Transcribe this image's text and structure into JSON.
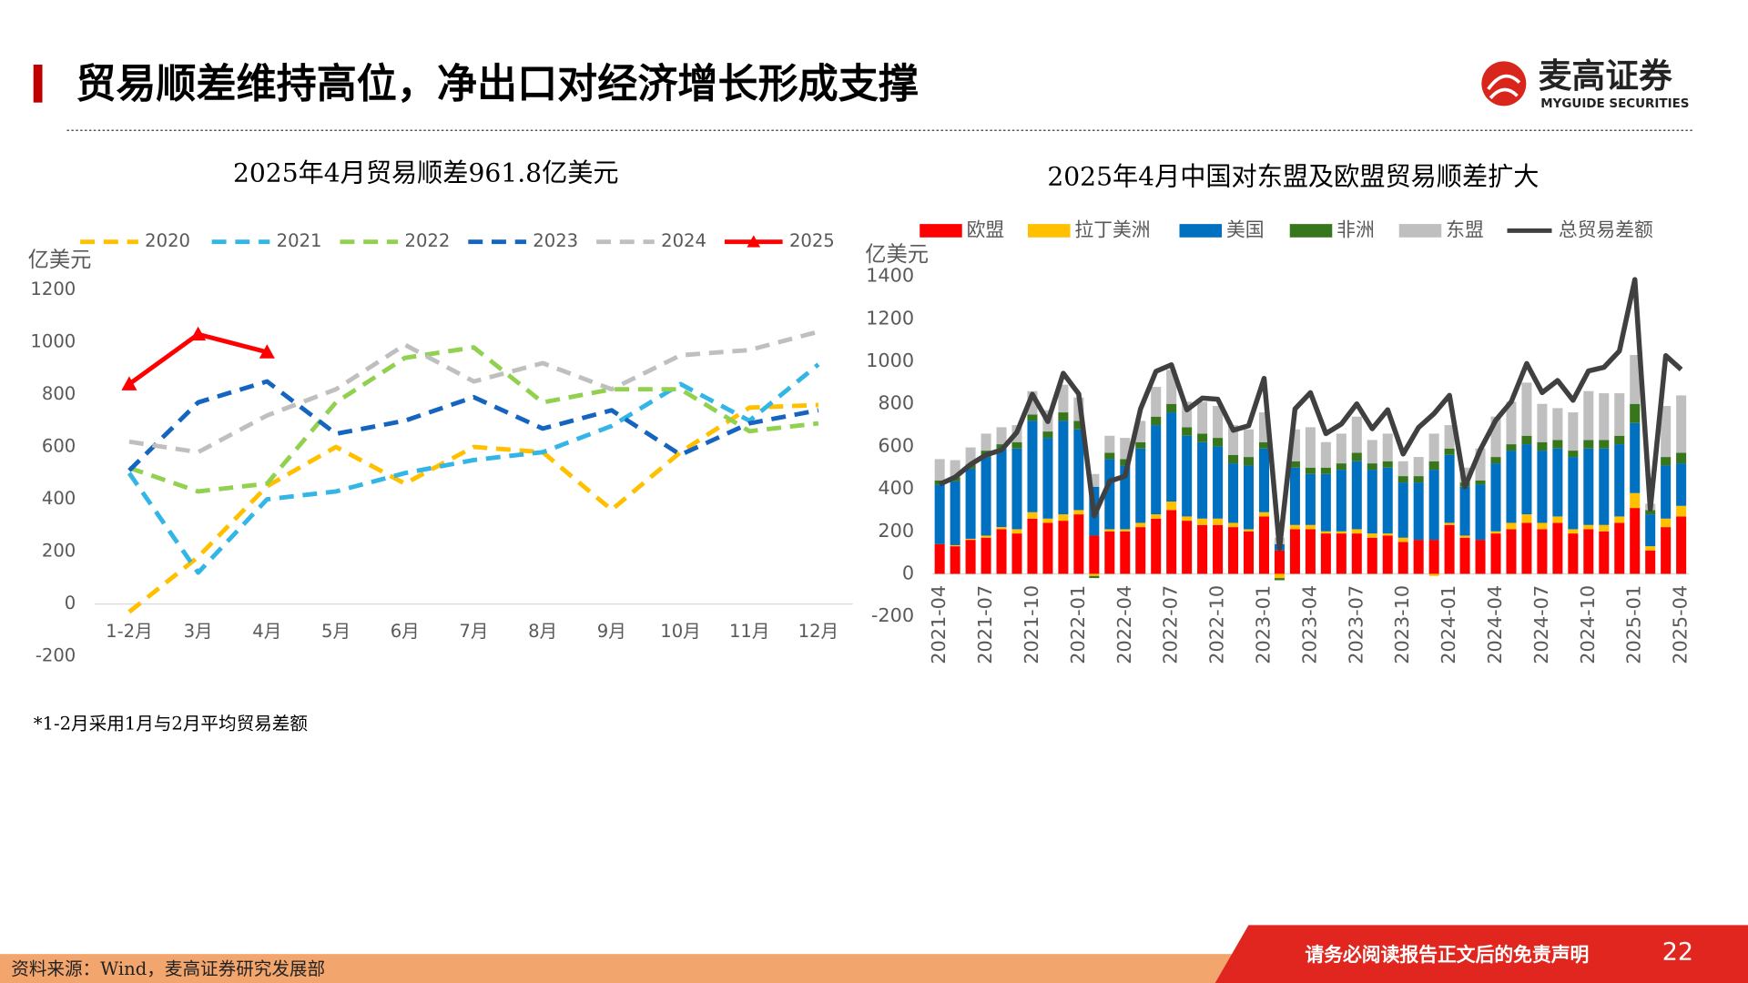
{
  "header": {
    "title": "贸易顺差维持高位，净出口对经济增长形成支撑",
    "logo": "麦高证券",
    "logo_sub": "MYGUIDE SECURITIES"
  },
  "chart_data": [
    {
      "type": "line",
      "title": "2025年4月贸易顺差961.8亿美元",
      "y_label": "亿美元",
      "categories": [
        "1-2月",
        "3月",
        "4月",
        "5月",
        "6月",
        "7月",
        "8月",
        "9月",
        "10月",
        "11月",
        "12月"
      ],
      "ylim": [
        -200,
        1200
      ],
      "yticks": [
        -200,
        0,
        200,
        400,
        600,
        800,
        1000,
        1200
      ],
      "series": [
        {
          "name": "2020",
          "color": "#FFC000",
          "line_style": "dashed",
          "values": [
            -30,
            180,
            450,
            600,
            460,
            600,
            580,
            360,
            580,
            750,
            760
          ]
        },
        {
          "name": "2021",
          "color": "#33B5E5",
          "line_style": "dashed",
          "values": [
            500,
            120,
            400,
            430,
            500,
            550,
            580,
            680,
            840,
            700,
            915
          ]
        },
        {
          "name": "2022",
          "color": "#92D050",
          "line_style": "dashed",
          "values": [
            520,
            430,
            460,
            770,
            940,
            980,
            770,
            820,
            820,
            660,
            690
          ]
        },
        {
          "name": "2023",
          "color": "#1565C0",
          "line_style": "dashed",
          "values": [
            510,
            770,
            850,
            650,
            700,
            790,
            670,
            740,
            570,
            690,
            740
          ]
        },
        {
          "name": "2024",
          "color": "#BFBFBF",
          "line_style": "dashed",
          "values": [
            620,
            580,
            720,
            820,
            990,
            850,
            920,
            820,
            950,
            970,
            1040
          ]
        },
        {
          "name": "2025",
          "color": "#FF0000",
          "line_style": "solid",
          "marker": "triangle",
          "values": [
            840,
            1030,
            962,
            null,
            null,
            null,
            null,
            null,
            null,
            null,
            null
          ]
        }
      ]
    },
    {
      "type": "bar",
      "stacked": true,
      "title": "2025年4月中国对东盟及欧盟贸易顺差扩大",
      "y_label": "亿美元",
      "categories": [
        "2021-04",
        null,
        null,
        "2021-07",
        null,
        null,
        "2021-10",
        null,
        null,
        "2022-01",
        null,
        null,
        "2022-04",
        null,
        null,
        "2022-07",
        null,
        null,
        "2022-10",
        null,
        null,
        "2023-01",
        null,
        null,
        "2023-04",
        null,
        null,
        "2023-07",
        null,
        null,
        "2023-10",
        null,
        null,
        "2024-01",
        null,
        null,
        "2024-04",
        null,
        null,
        "2024-07",
        null,
        null,
        "2024-10",
        null,
        null,
        "2025-01",
        null,
        null,
        "2025-04"
      ],
      "ylim": [
        -200,
        1400
      ],
      "yticks": [
        -200,
        0,
        200,
        400,
        600,
        800,
        1000,
        1200,
        1400
      ],
      "series": [
        {
          "name": "欧盟",
          "color": "#FF0000",
          "values": [
            140,
            130,
            160,
            170,
            210,
            190,
            260,
            240,
            250,
            280,
            180,
            200,
            200,
            220,
            260,
            300,
            250,
            230,
            230,
            220,
            200,
            270,
            110,
            210,
            210,
            190,
            190,
            190,
            170,
            180,
            150,
            160,
            160,
            230,
            170,
            160,
            190,
            210,
            240,
            210,
            240,
            190,
            210,
            200,
            240,
            310,
            110,
            220,
            270
          ]
        },
        {
          "name": "拉丁美洲",
          "color": "#FFC000",
          "values": [
            0,
            5,
            5,
            10,
            10,
            20,
            30,
            20,
            30,
            20,
            -10,
            10,
            10,
            20,
            20,
            40,
            20,
            30,
            30,
            20,
            10,
            20,
            -20,
            20,
            20,
            10,
            10,
            20,
            20,
            10,
            20,
            0,
            -10,
            10,
            10,
            0,
            10,
            30,
            40,
            30,
            30,
            20,
            20,
            30,
            30,
            70,
            20,
            40,
            50
          ]
        },
        {
          "name": "美国",
          "color": "#0070C0",
          "values": [
            280,
            300,
            330,
            370,
            370,
            380,
            430,
            380,
            440,
            380,
            230,
            330,
            300,
            350,
            420,
            420,
            380,
            360,
            340,
            280,
            300,
            300,
            30,
            270,
            240,
            270,
            290,
            320,
            300,
            310,
            260,
            270,
            330,
            320,
            230,
            260,
            320,
            340,
            330,
            340,
            320,
            340,
            360,
            360,
            340,
            330,
            150,
            250,
            200
          ]
        },
        {
          "name": "非洲",
          "color": "#38761D",
          "values": [
            20,
            20,
            20,
            30,
            20,
            30,
            30,
            30,
            40,
            40,
            -10,
            30,
            30,
            30,
            40,
            40,
            40,
            40,
            40,
            40,
            40,
            30,
            -10,
            30,
            30,
            30,
            30,
            40,
            30,
            30,
            30,
            30,
            40,
            30,
            20,
            20,
            30,
            30,
            40,
            40,
            40,
            30,
            40,
            40,
            40,
            90,
            20,
            40,
            50
          ]
        },
        {
          "name": "东盟",
          "color": "#BFBFBF",
          "values": [
            100,
            80,
            80,
            80,
            80,
            80,
            110,
            100,
            130,
            110,
            60,
            80,
            100,
            100,
            140,
            160,
            120,
            150,
            150,
            140,
            130,
            140,
            30,
            150,
            190,
            120,
            140,
            170,
            110,
            130,
            70,
            90,
            130,
            110,
            70,
            150,
            190,
            200,
            250,
            180,
            150,
            180,
            230,
            220,
            200,
            230,
            30,
            240,
            270
          ]
        },
        {
          "name": "总贸易差额",
          "color": "#404040",
          "type": "line",
          "values": [
            422,
            455,
            515,
            560,
            583,
            667,
            845,
            717,
            944,
            847,
            273,
            436,
            460,
            776,
            953,
            984,
            772,
            827,
            822,
            676,
            697,
            920,
            120,
            776,
            853,
            660,
            705,
            800,
            683,
            772,
            564,
            689,
            754,
            840,
            410,
            585,
            723,
            810,
            990,
            853,
            910,
            817,
            955,
            972,
            1049,
            1385,
            305,
            1027,
            962
          ]
        }
      ]
    }
  ],
  "footnote": "*1-2月采用1月与2月平均贸易差额",
  "footer": {
    "source": "资料来源：Wind，麦高证券研究发展部",
    "disclaimer": "请务必阅读报告正文后的免责声明",
    "page": "22"
  }
}
